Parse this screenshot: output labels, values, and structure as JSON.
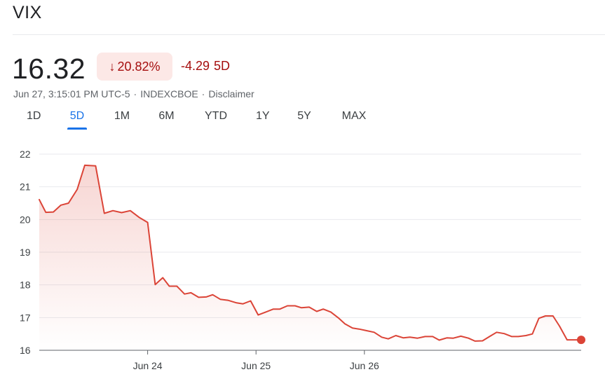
{
  "header": {
    "title": "VIX"
  },
  "quote": {
    "price": "16.32",
    "change_arrow": "↓",
    "change_percent": "20.82%",
    "change_abs": "-4.29",
    "change_period": "5D",
    "timestamp": "Jun 27, 3:15:01 PM UTC-5",
    "separator": "·",
    "exchange": "INDEXCBOE",
    "disclaimer": "Disclaimer"
  },
  "colors": {
    "line": "#db4437",
    "negative_text": "#a50e0e",
    "negative_bg": "#fce8e6",
    "accent": "#1a73e8",
    "grid": "#e8eaed"
  },
  "ranges": [
    {
      "label": "1D",
      "active": false
    },
    {
      "label": "5D",
      "active": true
    },
    {
      "label": "1M",
      "active": false
    },
    {
      "label": "6M",
      "active": false
    },
    {
      "label": "YTD",
      "active": false
    },
    {
      "label": "1Y",
      "active": false
    },
    {
      "label": "5Y",
      "active": false
    },
    {
      "label": "MAX",
      "active": false
    }
  ],
  "chart_data": {
    "type": "area",
    "title": "",
    "xlabel": "",
    "ylabel": "",
    "ylim": [
      16,
      22
    ],
    "yticks": [
      16,
      17,
      18,
      19,
      20,
      21,
      22
    ],
    "ytick_labels": [
      "16",
      "17",
      "18",
      "19",
      "20",
      "21",
      "22"
    ],
    "xticks": [
      {
        "label": "Jun 24",
        "session": 1.0
      },
      {
        "label": "Jun 25",
        "session": 2.0
      },
      {
        "label": "Jun 26",
        "session": 3.0
      }
    ],
    "x_unit": "trading session (0 = Jun 21 open, 5 = Jun 27 close)",
    "grid": true,
    "legend": "none",
    "last_point_marker": true,
    "series": [
      {
        "x": [
          0.0,
          0.06,
          0.13,
          0.2,
          0.27,
          0.35,
          0.42,
          0.52,
          0.6,
          0.68,
          0.76,
          0.84,
          0.92,
          1.0,
          1.07,
          1.14,
          1.2,
          1.27,
          1.34,
          1.4,
          1.47,
          1.54,
          1.6,
          1.67,
          1.74,
          1.82,
          1.88,
          1.95,
          2.02,
          2.09,
          2.16,
          2.22,
          2.29,
          2.36,
          2.42,
          2.49,
          2.56,
          2.62,
          2.69,
          2.76,
          2.82,
          2.89,
          2.95,
          3.02,
          3.09,
          3.16,
          3.22,
          3.29,
          3.36,
          3.42,
          3.49,
          3.56,
          3.63,
          3.69,
          3.76,
          3.82,
          3.89,
          3.96,
          4.02,
          4.09,
          4.16,
          4.22,
          4.29,
          4.36,
          4.42,
          4.49,
          4.55,
          4.61,
          4.67,
          4.74,
          4.8,
          4.87,
          4.94,
          5.0
        ],
        "y": [
          20.61,
          20.22,
          20.23,
          20.44,
          20.5,
          20.92,
          21.66,
          21.64,
          20.19,
          20.27,
          20.21,
          20.27,
          20.07,
          19.91,
          18.01,
          18.22,
          17.96,
          17.96,
          17.72,
          17.76,
          17.62,
          17.63,
          17.7,
          17.56,
          17.53,
          17.45,
          17.42,
          17.51,
          17.08,
          17.17,
          17.26,
          17.26,
          17.36,
          17.36,
          17.3,
          17.32,
          17.19,
          17.26,
          17.17,
          16.99,
          16.81,
          16.68,
          16.65,
          16.6,
          16.55,
          16.4,
          16.35,
          16.45,
          16.38,
          16.4,
          16.37,
          16.42,
          16.42,
          16.31,
          16.38,
          16.37,
          16.43,
          16.37,
          16.28,
          16.29,
          16.43,
          16.55,
          16.51,
          16.42,
          16.42,
          16.45,
          16.5,
          16.98,
          17.05,
          17.05,
          16.74,
          16.32,
          16.32,
          16.32
        ]
      }
    ]
  }
}
